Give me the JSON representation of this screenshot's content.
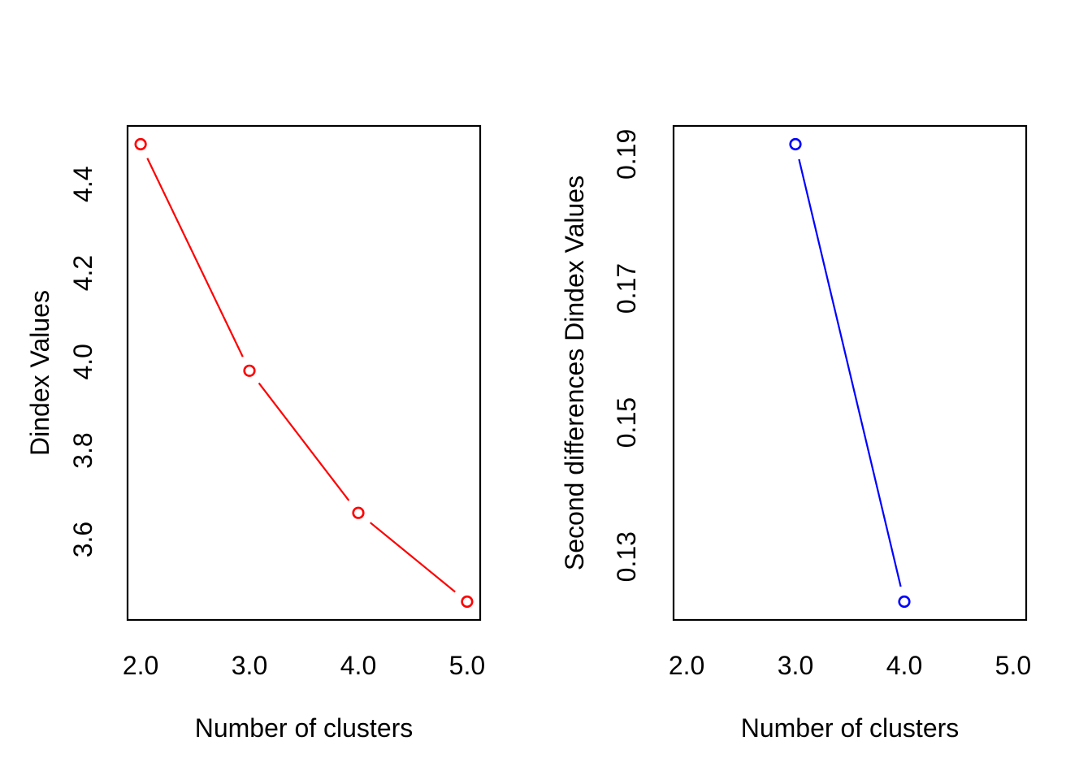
{
  "figure": {
    "background_color": "#ffffff",
    "text_color": "#000000",
    "frame_color": "#000000"
  },
  "chart_data": [
    {
      "type": "line",
      "title": "",
      "xlabel": "Number of clusters",
      "ylabel": "Dindex Values",
      "series": [
        {
          "name": "Dindex",
          "x": [
            2,
            3,
            4,
            5
          ],
          "y": [
            4.49,
            3.98,
            3.66,
            3.46
          ]
        }
      ],
      "marker": "open-circle",
      "line_style": "solid-with-point-gaps",
      "color": "#ff0000",
      "xlim": [
        2,
        5
      ],
      "ylim": [
        3.46,
        4.49
      ],
      "x_tick_values": [
        2,
        3,
        4,
        5
      ],
      "x_tick_labels": [
        "2.0",
        "3.0",
        "4.0",
        "5.0"
      ],
      "y_tick_values": [
        3.6,
        3.8,
        4.0,
        4.2,
        4.4
      ],
      "y_tick_labels": [
        "3.6",
        "3.8",
        "4.0",
        "4.2",
        "4.4"
      ],
      "grid": false,
      "legend": null
    },
    {
      "type": "line",
      "title": "",
      "xlabel": "Number of clusters",
      "ylabel": "Second differences Dindex Values",
      "series": [
        {
          "name": "Second differences Dindex",
          "x": [
            3,
            4
          ],
          "y": [
            0.1915,
            0.1233
          ]
        }
      ],
      "marker": "open-circle",
      "line_style": "solid-with-point-gaps",
      "color": "#0000ff",
      "xlim": [
        2,
        5
      ],
      "ylim": [
        0.1233,
        0.1915
      ],
      "x_tick_values": [
        2,
        3,
        4,
        5
      ],
      "x_tick_labels": [
        "2.0",
        "3.0",
        "4.0",
        "5.0"
      ],
      "y_tick_values": [
        0.13,
        0.15,
        0.17,
        0.19
      ],
      "y_tick_labels": [
        "0.13",
        "0.15",
        "0.17",
        "0.19"
      ],
      "grid": false,
      "legend": null
    }
  ]
}
